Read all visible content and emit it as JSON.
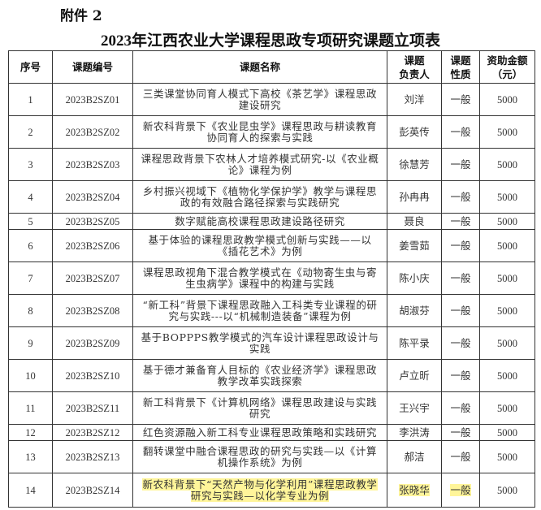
{
  "attachment_label": "附件 2",
  "title": "2023年江西农业大学课程思政专项研究课题立项表",
  "columns": [
    "序号",
    "课题编号",
    "课题名称",
    "课题负责人",
    "课题性质",
    "资助金额（元）"
  ],
  "column_lines": {
    "leader": [
      "课题",
      "负责人"
    ],
    "nature": [
      "课题",
      "性质"
    ],
    "amount": [
      "资助金额",
      "（元）"
    ]
  },
  "highlight_color": "#fff59a",
  "rows": [
    {
      "no": "1",
      "code": "2023B2SZ01",
      "name": "三类课堂协同育人模式下高校《茶艺学》课程思政建设研究",
      "leader": "刘洋",
      "nature": "一般",
      "amount": "5000"
    },
    {
      "no": "2",
      "code": "2023B2SZ02",
      "name": "新农科背景下《农业昆虫学》课程思政与耕读教育协同育人的探索与实践",
      "leader": "彭英传",
      "nature": "一般",
      "amount": "5000"
    },
    {
      "no": "3",
      "code": "2023B2SZ03",
      "name": "课程思政背景下农林人才培养模式研究-以《农业概论》课程为例",
      "leader": "徐慧芳",
      "nature": "一般",
      "amount": "5000"
    },
    {
      "no": "4",
      "code": "2023B2SZ04",
      "name": "乡村振兴视域下《植物化学保护学》教学与课程思政的有效融合路径探索与实践研究",
      "leader": "孙冉冉",
      "nature": "一般",
      "amount": "5000"
    },
    {
      "no": "5",
      "code": "2023B2SZ05",
      "name": "数字赋能高校课程思政建设路径研究",
      "leader": "聂良",
      "nature": "一般",
      "amount": "5000"
    },
    {
      "no": "6",
      "code": "2023B2SZ06",
      "name": "基于体验的课程思政教学模式创新与实践——以《插花艺术》为例",
      "leader": "姜雪茹",
      "nature": "一般",
      "amount": "5000"
    },
    {
      "no": "7",
      "code": "2023B2SZ07",
      "name": "课程思政视角下混合教学模式在《动物寄生虫与寄生虫病学》课程中的构建与实践",
      "leader": "陈小庆",
      "nature": "一般",
      "amount": "5000"
    },
    {
      "no": "8",
      "code": "2023B2SZ08",
      "name": "“新工科”背景下课程思政融入工科类专业课程的研究与实践---以“机械制造装备”课程为例",
      "leader": "胡淑芬",
      "nature": "一般",
      "amount": "5000"
    },
    {
      "no": "9",
      "code": "2023B2SZ09",
      "name": "基于BOPPPS教学模式的汽车设计课程思政设计与实践",
      "leader": "陈平录",
      "nature": "一般",
      "amount": "5000"
    },
    {
      "no": "10",
      "code": "2023B2SZ10",
      "name": "基于德才兼备育人目标的《农业经济学》课程思政教学改革实践探索",
      "leader": "卢立昕",
      "nature": "一般",
      "amount": "5000"
    },
    {
      "no": "11",
      "code": "2023B2SZ11",
      "name": "新工科背景下《计算机网络》课程思政建设与实践研究",
      "leader": "王兴宇",
      "nature": "一般",
      "amount": "5000"
    },
    {
      "no": "12",
      "code": "2023B2SZ12",
      "name": "红色资源融入新工科专业课程思政策略和实践研究",
      "leader": "李洪涛",
      "nature": "一般",
      "amount": "5000"
    },
    {
      "no": "13",
      "code": "2023B2SZ13",
      "name": "翻转课堂中融合课程思政的研究与实践—以《计算机操作系统》为例",
      "leader": "郝洁",
      "nature": "一般",
      "amount": "5000"
    },
    {
      "no": "14",
      "code": "2023B2SZ14",
      "name": "新农科背景下“天然产物与化学利用”课程思政教学研究与实践—以化学专业为例",
      "leader": "张晓华",
      "nature": "一般",
      "amount": "5000",
      "highlighted": true
    }
  ]
}
